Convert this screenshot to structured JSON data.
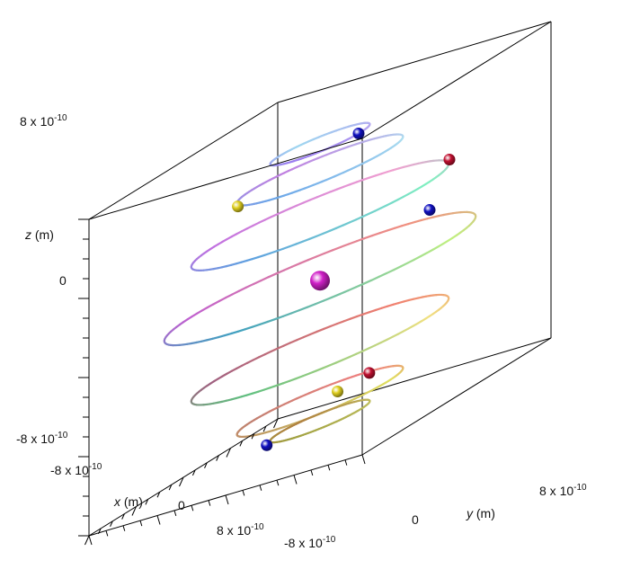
{
  "chart_data": {
    "type": "scatter",
    "title": "",
    "axes": {
      "x": {
        "label_var": "x",
        "label_unit": " (m)",
        "min": -8e-10,
        "max": 8e-10,
        "tick_labels": {
          "min": "-8 x 10",
          "mid": "0",
          "max": "8 x 10",
          "exp": "-10"
        }
      },
      "y": {
        "label_var": "y",
        "label_unit": " (m)",
        "min": -8e-10,
        "max": 8e-10,
        "tick_labels": {
          "min": "-8 x 10",
          "mid": "0",
          "max": "8 x 10",
          "exp": "-10"
        }
      },
      "z": {
        "label_var": "z",
        "label_unit": " (m)",
        "min": -8e-10,
        "max": 8e-10,
        "tick_labels": {
          "min": "-8 x 10",
          "mid": "0",
          "max": "8 x 10",
          "exp": "-10"
        }
      }
    },
    "grid": false,
    "box": true,
    "orbits": [
      {
        "z": 6.8e-10,
        "radius": 2.4e-10,
        "colors": [
          "#9b7cf0",
          "#b6a6f0",
          "#9fd6f0"
        ]
      },
      {
        "z": 5.5e-10,
        "radius": 4e-10,
        "colors": [
          "#6ba6e8",
          "#b0e0f0",
          "#c080e0"
        ]
      },
      {
        "z": 3.2e-10,
        "radius": 6.2e-10,
        "colors": [
          "#5fa0e0",
          "#80f0c0",
          "#f0a0d0",
          "#c070e0"
        ]
      },
      {
        "z": 0.0,
        "radius": 7.5e-10,
        "colors": [
          "#40a0c0",
          "#c0f080",
          "#f09080",
          "#c060d0"
        ]
      },
      {
        "z": -3.6e-10,
        "radius": 6.2e-10,
        "colors": [
          "#60c080",
          "#f0e080",
          "#f08070",
          "#a06080"
        ]
      },
      {
        "z": -6.2e-10,
        "radius": 4e-10,
        "colors": [
          "#c0a060",
          "#e0e060",
          "#f08080",
          "#c08070"
        ]
      },
      {
        "z": -7.2e-10,
        "radius": 2.4e-10,
        "colors": [
          "#a0a040",
          "#c0c060",
          "#b08040"
        ]
      }
    ],
    "particles": [
      {
        "kind": "nucleus",
        "color": "#d020c8",
        "x": 0.0,
        "y": 0.0,
        "z": -1e-11,
        "size": 11
      },
      {
        "kind": "electron",
        "color": "#1010c0",
        "x": 2e-11,
        "y": 2.4e-10,
        "z": 6.8e-10,
        "size": 6.5
      },
      {
        "kind": "electron",
        "color": "#e0d020",
        "x": 3.2e-10,
        "y": -2.6e-10,
        "z": 5.5e-10,
        "size": 6.5
      },
      {
        "kind": "electron",
        "color": "#c01030",
        "x": -4.6e-10,
        "y": 4.4e-10,
        "z": 3.2e-10,
        "size": 6.5
      },
      {
        "kind": "electron",
        "color": "#1010c0",
        "x": -6.4e-10,
        "y": 2e-10,
        "z": 6e-11,
        "size": 6.5
      },
      {
        "kind": "electron",
        "color": "#e0d020",
        "x": -1.2e-10,
        "y": 2e-11,
        "z": -6.2e-10,
        "size": 6.5
      },
      {
        "kind": "electron",
        "color": "#c01030",
        "x": -3.6e-10,
        "y": 4e-11,
        "z": -6.2e-10,
        "size": 6.5
      },
      {
        "kind": "electron",
        "color": "#1010c0",
        "x": 2.2e-10,
        "y": -1.6e-10,
        "z": -7.2e-10,
        "size": 6.5
      }
    ]
  }
}
